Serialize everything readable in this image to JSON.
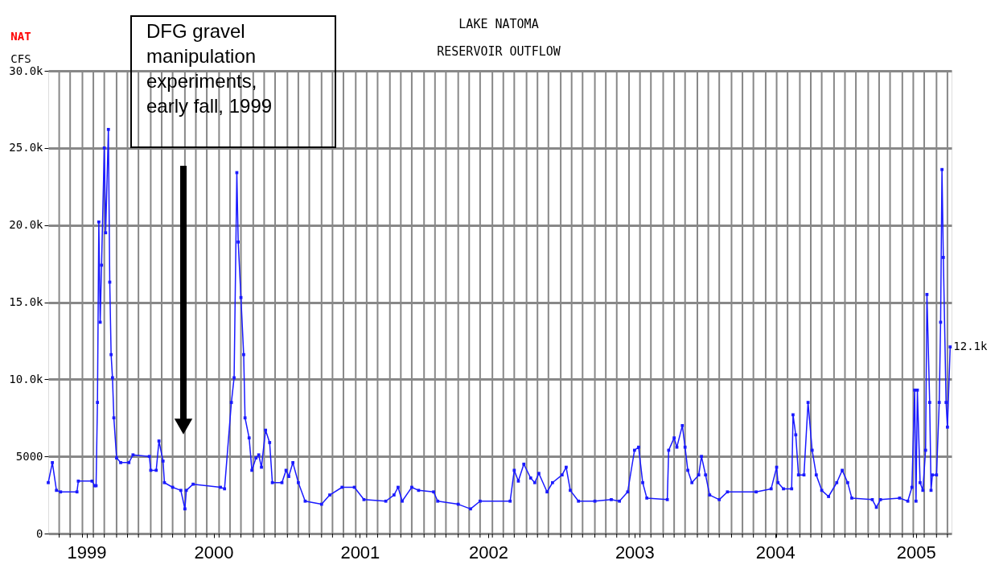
{
  "chart_data": {
    "type": "line",
    "title": "LAKE NATOMA",
    "subtitle": "RESERVOIR OUTFLOW",
    "ylabel": "CFS",
    "annotations": [
      "NAT",
      {
        "text": "12.1k",
        "x": 2005.27,
        "y": 12100
      },
      "DFG gravel manipulation experiments, early fall, 1999"
    ],
    "xlim": [
      1998.67,
      2005.28
    ],
    "ylim": [
      0,
      30000
    ],
    "yticks": [
      0,
      5000,
      {
        "value": 10000,
        "label": "10.0k"
      },
      {
        "value": 15000,
        "label": "15.0k"
      },
      {
        "value": 20000,
        "label": "20.0k"
      },
      {
        "value": 25000,
        "label": "25.0k"
      },
      {
        "value": 30000,
        "label": "30.0k"
      }
    ],
    "xticks": [
      {
        "value": 1998.95,
        "label": "1999"
      },
      {
        "value": 1999.88,
        "label": "2000"
      },
      {
        "value": 2000.95,
        "label": "2001"
      },
      {
        "value": 2001.89,
        "label": "2002"
      },
      {
        "value": 2002.96,
        "label": "2003"
      },
      {
        "value": 2003.99,
        "label": "2004"
      },
      {
        "value": 2005.02,
        "label": "2005"
      },
      {
        "value": 1998.75,
        "label": null
      },
      {
        "value": 1998.83,
        "label": null
      },
      {
        "value": 1998.92,
        "label": null
      },
      {
        "value": 1999.0,
        "label": null
      },
      {
        "value": 1999.08,
        "label": null
      },
      {
        "value": 1999.17,
        "label": null
      },
      {
        "value": 1999.25,
        "label": null
      },
      {
        "value": 1999.33,
        "label": null
      },
      {
        "value": 1999.42,
        "label": null
      },
      {
        "value": 1999.5,
        "label": null
      },
      {
        "value": 1999.58,
        "label": null
      },
      {
        "value": 1999.67,
        "label": null
      },
      {
        "value": 1999.75,
        "label": null
      },
      {
        "value": 1999.83,
        "label": null
      },
      {
        "value": 1999.92,
        "label": null
      },
      {
        "value": 2000.0,
        "label": null
      },
      {
        "value": 2000.08,
        "label": null
      },
      {
        "value": 2000.17,
        "label": null
      },
      {
        "value": 2000.25,
        "label": null
      },
      {
        "value": 2000.33,
        "label": null
      },
      {
        "value": 2000.42,
        "label": null
      },
      {
        "value": 2000.5,
        "label": null
      },
      {
        "value": 2000.58,
        "label": null
      },
      {
        "value": 2000.67,
        "label": null
      },
      {
        "value": 2000.75,
        "label": null
      },
      {
        "value": 2000.83,
        "label": null
      },
      {
        "value": 2000.92,
        "label": null
      },
      {
        "value": 2001.0,
        "label": null
      },
      {
        "value": 2001.08,
        "label": null
      },
      {
        "value": 2001.17,
        "label": null
      },
      {
        "value": 2001.25,
        "label": null
      },
      {
        "value": 2001.33,
        "label": null
      },
      {
        "value": 2001.42,
        "label": null
      },
      {
        "value": 2001.5,
        "label": null
      },
      {
        "value": 2001.58,
        "label": null
      },
      {
        "value": 2001.67,
        "label": null
      },
      {
        "value": 2001.75,
        "label": null
      },
      {
        "value": 2001.83,
        "label": null
      },
      {
        "value": 2001.92,
        "label": null
      },
      {
        "value": 2002.0,
        "label": null
      },
      {
        "value": 2002.08,
        "label": null
      },
      {
        "value": 2002.17,
        "label": null
      },
      {
        "value": 2002.25,
        "label": null
      },
      {
        "value": 2002.33,
        "label": null
      },
      {
        "value": 2002.42,
        "label": null
      },
      {
        "value": 2002.5,
        "label": null
      },
      {
        "value": 2002.58,
        "label": null
      },
      {
        "value": 2002.67,
        "label": null
      },
      {
        "value": 2002.75,
        "label": null
      },
      {
        "value": 2002.83,
        "label": null
      },
      {
        "value": 2002.92,
        "label": null
      },
      {
        "value": 2003.0,
        "label": null
      },
      {
        "value": 2003.08,
        "label": null
      },
      {
        "value": 2003.17,
        "label": null
      },
      {
        "value": 2003.25,
        "label": null
      },
      {
        "value": 2003.33,
        "label": null
      },
      {
        "value": 2003.42,
        "label": null
      },
      {
        "value": 2003.5,
        "label": null
      },
      {
        "value": 2003.58,
        "label": null
      },
      {
        "value": 2003.67,
        "label": null
      },
      {
        "value": 2003.75,
        "label": null
      },
      {
        "value": 2003.83,
        "label": null
      },
      {
        "value": 2003.92,
        "label": null
      },
      {
        "value": 2004.0,
        "label": null
      },
      {
        "value": 2004.08,
        "label": null
      },
      {
        "value": 2004.17,
        "label": null
      },
      {
        "value": 2004.25,
        "label": null
      },
      {
        "value": 2004.33,
        "label": null
      },
      {
        "value": 2004.42,
        "label": null
      },
      {
        "value": 2004.5,
        "label": null
      },
      {
        "value": 2004.58,
        "label": null
      },
      {
        "value": 2004.67,
        "label": null
      },
      {
        "value": 2004.75,
        "label": null
      },
      {
        "value": 2004.83,
        "label": null
      },
      {
        "value": 2004.92,
        "label": null
      },
      {
        "value": 2005.0,
        "label": null
      },
      {
        "value": 2005.08,
        "label": null
      },
      {
        "value": 2005.17,
        "label": null
      },
      {
        "value": 2005.25,
        "label": null
      }
    ],
    "grid": true,
    "marker": "square",
    "line_style": "solid",
    "series": [
      {
        "color": "#1a1aff",
        "x": [
          1998.67,
          1998.7,
          1998.73,
          1998.76,
          1998.88,
          1998.89,
          1998.99,
          1999.01,
          1999.02,
          1999.03,
          1999.04,
          1999.05,
          1999.06,
          1999.08,
          1999.09,
          1999.11,
          1999.12,
          1999.13,
          1999.14,
          1999.15,
          1999.17,
          1999.2,
          1999.26,
          1999.29,
          1999.41,
          1999.42,
          1999.46,
          1999.48,
          1999.51,
          1999.52,
          1999.58,
          1999.64,
          1999.67,
          1999.68,
          1999.73,
          1999.93,
          1999.96,
          2000.01,
          2000.03,
          2000.05,
          2000.06,
          2000.08,
          2000.1,
          2000.11,
          2000.14,
          2000.16,
          2000.19,
          2000.21,
          2000.23,
          2000.26,
          2000.29,
          2000.31,
          2000.38,
          2000.41,
          2000.43,
          2000.46,
          2000.5,
          2000.55,
          2000.67,
          2000.73,
          2000.82,
          2000.91,
          2000.98,
          2001.14,
          2001.2,
          2001.23,
          2001.26,
          2001.33,
          2001.38,
          2001.49,
          2001.52,
          2001.67,
          2001.76,
          2001.83,
          2002.05,
          2002.08,
          2002.11,
          2002.15,
          2002.2,
          2002.23,
          2002.26,
          2002.32,
          2002.36,
          2002.43,
          2002.46,
          2002.49,
          2002.55,
          2002.67,
          2002.79,
          2002.85,
          2002.91,
          2002.96,
          2002.99,
          2003.02,
          2003.05,
          2003.2,
          2003.21,
          2003.25,
          2003.27,
          2003.31,
          2003.33,
          2003.35,
          2003.38,
          2003.43,
          2003.45,
          2003.48,
          2003.51,
          2003.58,
          2003.64,
          2003.85,
          2003.96,
          2004.0,
          2004.01,
          2004.05,
          2004.11,
          2004.12,
          2004.14,
          2004.16,
          2004.2,
          2004.23,
          2004.26,
          2004.29,
          2004.33,
          2004.38,
          2004.44,
          2004.48,
          2004.52,
          2004.55,
          2004.7,
          2004.73,
          2004.76,
          2004.9,
          2004.96,
          2004.99,
          2005.01,
          2005.02,
          2005.03,
          2005.05,
          2005.07,
          2005.09,
          2005.1,
          2005.12,
          2005.13,
          2005.14,
          2005.17,
          2005.19,
          2005.2,
          2005.21,
          2005.22,
          2005.24,
          2005.25,
          2005.27
        ],
        "values": [
          3300,
          4600,
          2800,
          2700,
          2700,
          3400,
          3400,
          3100,
          3100,
          8500,
          20200,
          13700,
          17400,
          25000,
          19500,
          26200,
          16300,
          11600,
          10100,
          7500,
          4900,
          4600,
          4600,
          5100,
          5000,
          4100,
          4100,
          6000,
          4700,
          3300,
          3000,
          2800,
          1600,
          2800,
          3200,
          3000,
          2900,
          8500,
          10100,
          23400,
          18900,
          15300,
          11600,
          7500,
          6200,
          4100,
          4900,
          5100,
          4300,
          6700,
          5900,
          3300,
          3300,
          4100,
          3700,
          4600,
          3300,
          2100,
          1900,
          2500,
          3000,
          3000,
          2200,
          2100,
          2500,
          3000,
          2100,
          3000,
          2800,
          2700,
          2100,
          1900,
          1600,
          2100,
          2100,
          4100,
          3400,
          4500,
          3600,
          3300,
          3900,
          2700,
          3300,
          3800,
          4300,
          2800,
          2100,
          2100,
          2200,
          2100,
          2700,
          5400,
          5600,
          3300,
          2300,
          2200,
          5400,
          6200,
          5600,
          7000,
          5600,
          4100,
          3300,
          3800,
          5000,
          3800,
          2500,
          2200,
          2700,
          2700,
          2900,
          4300,
          3300,
          2900,
          2900,
          7700,
          6400,
          3800,
          3800,
          8500,
          5400,
          3800,
          2800,
          2400,
          3300,
          4100,
          3300,
          2300,
          2200,
          1700,
          2200,
          2300,
          2100,
          3000,
          9300,
          2100,
          9300,
          3300,
          2800,
          5400,
          15500,
          8500,
          2800,
          3800,
          3800,
          8500,
          13700,
          23600,
          17900,
          8500,
          6900,
          12100
        ]
      }
    ]
  }
}
